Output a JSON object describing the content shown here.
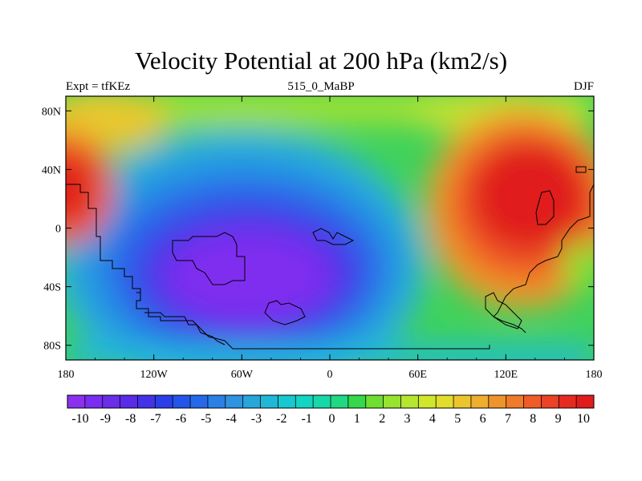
{
  "title": "Velocity Potential at 200 hPa (km2/s)",
  "subtitle_left": "Expt = tfKEz",
  "subtitle_center": "515_0_MaBP",
  "subtitle_right": "DJF",
  "x_tick_labels": [
    "180",
    "120W",
    "60W",
    "0",
    "60E",
    "120E",
    "180"
  ],
  "y_tick_labels": [
    "80N",
    "40N",
    "0",
    "40S",
    "80S"
  ],
  "colorbar": {
    "labels": [
      "-10",
      "-9",
      "-8",
      "-7",
      "-6",
      "-5",
      "-4",
      "-3",
      "-2",
      "-1",
      "0",
      "1",
      "2",
      "3",
      "4",
      "5",
      "6",
      "7",
      "8",
      "9",
      "10"
    ],
    "colors": [
      "#8c30f0",
      "#7a2ef0",
      "#6a2de8",
      "#5a2be8",
      "#4432e6",
      "#2b3fe8",
      "#2455ea",
      "#2569ea",
      "#2b80e6",
      "#2e93e0",
      "#27a6dc",
      "#20b8d6",
      "#17c8d0",
      "#14d4c2",
      "#17d8a8",
      "#1fd884",
      "#35d84a",
      "#6ede30",
      "#98e230",
      "#b6e630",
      "#cfe62c",
      "#e2dc2c",
      "#ecc52e",
      "#efae2e",
      "#ef942c",
      "#ef7a2a",
      "#ef5c27",
      "#ec4225",
      "#e62a22",
      "#e01c1c"
    ]
  },
  "map": {
    "projection": "cylindrical equidistant",
    "field": "velocity potential",
    "units": "km2/s",
    "min": -10,
    "max": 10
  }
}
